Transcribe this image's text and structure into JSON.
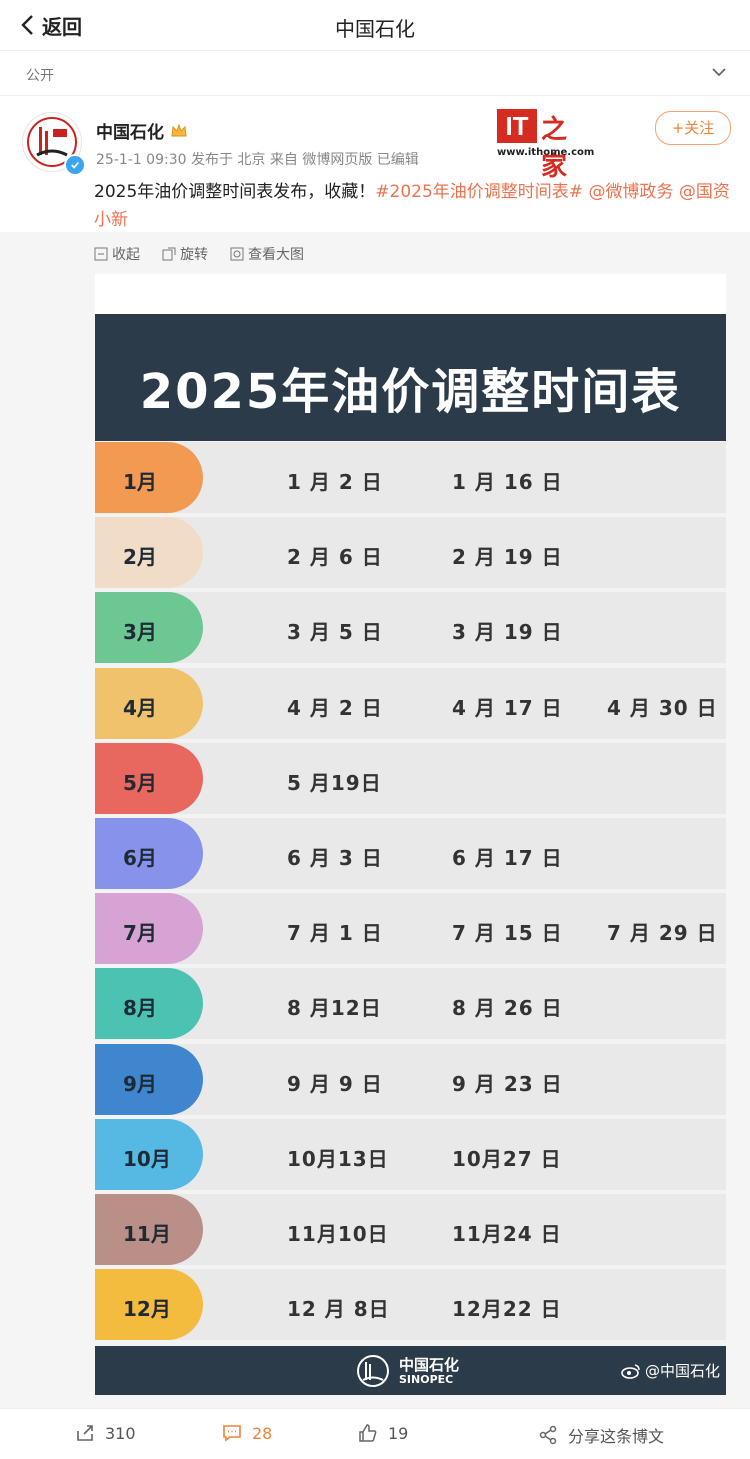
{
  "nav": {
    "back_label": "返回",
    "title": "中国石化"
  },
  "visibility": {
    "label": "公开"
  },
  "post": {
    "author": "中国石化",
    "meta": "25-1-1 09:30 发布于 北京 来自 微博网页版 已编辑",
    "follow_label": "+关注",
    "text_plain": "2025年油价调整时间表发布，收藏！",
    "hashtag": "#2025年油价调整时间表#",
    "mention1": "@微博政务",
    "mention2": "@国资小新"
  },
  "ithome": {
    "it": "IT",
    "zh": "之家",
    "url": "www.ithome.com"
  },
  "tools": {
    "collapse": "收起",
    "rotate": "旋转",
    "view_large": "查看大图"
  },
  "schedule": {
    "title": "2025年油价调整时间表",
    "rows": [
      {
        "month": "1月",
        "color": "#f39a52",
        "dates": [
          "1 月 2 日",
          "1 月 16 日",
          ""
        ]
      },
      {
        "month": "2月",
        "color": "#f1dcc8",
        "dates": [
          "2 月 6 日",
          "2 月 19 日",
          ""
        ]
      },
      {
        "month": "3月",
        "color": "#6cc793",
        "dates": [
          "3 月 5 日",
          "3 月 19 日",
          ""
        ]
      },
      {
        "month": "4月",
        "color": "#f0c26b",
        "dates": [
          "4 月 2 日",
          "4 月 17 日",
          "4 月 30 日"
        ]
      },
      {
        "month": "5月",
        "color": "#e8675f",
        "dates": [
          "5 月19日",
          "",
          ""
        ]
      },
      {
        "month": "6月",
        "color": "#8792ea",
        "dates": [
          "6 月 3 日",
          "6 月 17 日",
          ""
        ]
      },
      {
        "month": "7月",
        "color": "#d6a3d4",
        "dates": [
          "7 月 1 日",
          "7 月 15 日",
          "7 月 29 日"
        ]
      },
      {
        "month": "8月",
        "color": "#4cc2b3",
        "dates": [
          "8 月12日",
          "8 月 26 日",
          ""
        ]
      },
      {
        "month": "9月",
        "color": "#3f86cf",
        "dates": [
          "9 月 9 日",
          "9 月 23 日",
          ""
        ]
      },
      {
        "month": "10月",
        "color": "#56b9e3",
        "dates": [
          "10月13日",
          "10月27 日",
          ""
        ]
      },
      {
        "month": "11月",
        "color": "#b98f88",
        "dates": [
          "11月10日",
          "11月24 日",
          ""
        ]
      },
      {
        "month": "12月",
        "color": "#f3bc3f",
        "dates": [
          "12 月 8日",
          "12月22 日",
          ""
        ]
      }
    ],
    "footer_zh": "中国石化",
    "footer_en": "SINOPEC",
    "watermark": "@中国石化"
  },
  "actions": {
    "repost": "310",
    "comment": "28",
    "like": "19",
    "share": "分享这条博文"
  },
  "colors": {
    "accent": "#eb7350",
    "header_bg": "#2c3b49"
  }
}
